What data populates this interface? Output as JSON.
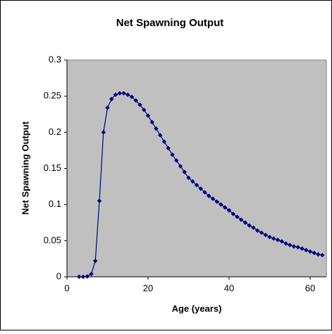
{
  "chart_data": {
    "type": "line",
    "title": "Net Spawning Output",
    "x_label": "Age (years)",
    "y_label": "Net Spawning Output",
    "x": [
      3,
      4,
      5,
      6,
      7,
      8,
      9,
      10,
      11,
      12,
      13,
      14,
      15,
      16,
      17,
      18,
      19,
      20,
      21,
      22,
      23,
      24,
      25,
      26,
      27,
      28,
      29,
      30,
      31,
      32,
      33,
      34,
      35,
      36,
      37,
      38,
      39,
      40,
      41,
      42,
      43,
      44,
      45,
      46,
      47,
      48,
      49,
      50,
      51,
      52,
      53,
      54,
      55,
      56,
      57,
      58,
      59,
      60,
      61,
      62,
      63
    ],
    "series": [
      {
        "name": "Net Spawning Output",
        "color": "#000080",
        "values": [
          0,
          0,
          0.0005,
          0.004,
          0.022,
          0.105,
          0.2,
          0.234,
          0.246,
          0.252,
          0.254,
          0.254,
          0.252,
          0.249,
          0.244,
          0.238,
          0.231,
          0.223,
          0.214,
          0.205,
          0.196,
          0.187,
          0.178,
          0.169,
          0.161,
          0.153,
          0.145,
          0.137,
          0.132,
          0.127,
          0.122,
          0.117,
          0.112,
          0.108,
          0.104,
          0.1,
          0.096,
          0.092,
          0.087,
          0.083,
          0.079,
          0.075,
          0.071,
          0.068,
          0.064,
          0.061,
          0.058,
          0.055,
          0.053,
          0.051,
          0.049,
          0.046,
          0.044,
          0.042,
          0.041,
          0.039,
          0.037,
          0.035,
          0.033,
          0.031,
          0.03
        ]
      }
    ],
    "xlim": [
      0,
      64
    ],
    "xticks": [
      0,
      20,
      40,
      60
    ],
    "ylim": [
      0,
      0.3
    ],
    "yticks": [
      0,
      0.05,
      0.1,
      0.15,
      0.2,
      0.25,
      0.3
    ],
    "plot_background": "#c0c0c0"
  }
}
